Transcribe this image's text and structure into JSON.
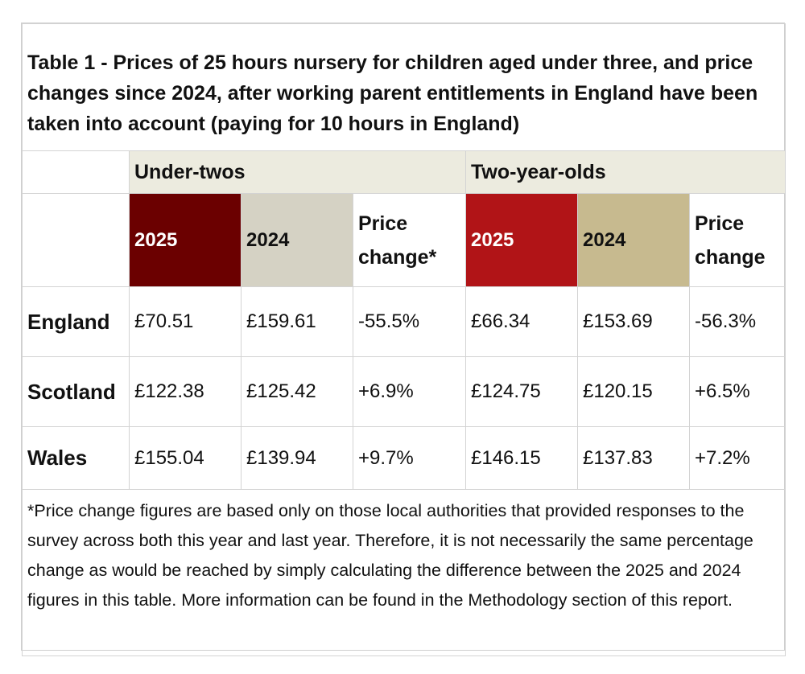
{
  "title": "Table 1 - Prices of 25 hours nursery for children aged under three, and price changes since 2024, after working parent entitlements in England have been taken into account (paying for 10 hours in England)",
  "groups": {
    "under_twos": "Under-twos",
    "two_year_olds": "Two-year-olds"
  },
  "columns": {
    "year_2025": "2025",
    "year_2024": "2024",
    "price_change_starred": "Price change*",
    "price_change": "Price change"
  },
  "colors": {
    "under_2025": "#6b0000",
    "under_2024": "#d5d2c4",
    "two_2025": "#b11417",
    "two_2024": "#c7ba8f",
    "group_header": "#ecebdf"
  },
  "rows": [
    {
      "country": "England",
      "u2025": "£70.51",
      "u2024": "£159.61",
      "uchange": "-55.5%",
      "t2025": "£66.34",
      "t2024": "£153.69",
      "tchange": "-56.3%"
    },
    {
      "country": "Scotland",
      "u2025": "£122.38",
      "u2024": "£125.42",
      "uchange": "+6.9%",
      "t2025": "£124.75",
      "t2024": "£120.15",
      "tchange": "+6.5%"
    },
    {
      "country": "Wales",
      "u2025": "£155.04",
      "u2024": "£139.94",
      "uchange": "+9.7%",
      "t2025": "£146.15",
      "t2024": "£137.83",
      "tchange": "+7.2%"
    }
  ],
  "footnote": "*Price change figures are based only on those local authorities that provided responses to the survey across both this year and last year. Therefore, it is not necessarily the same percentage change as would be reached by simply calculating the difference between the 2025 and 2024 figures in this table. More information can be found in the Methodology section of this report."
}
